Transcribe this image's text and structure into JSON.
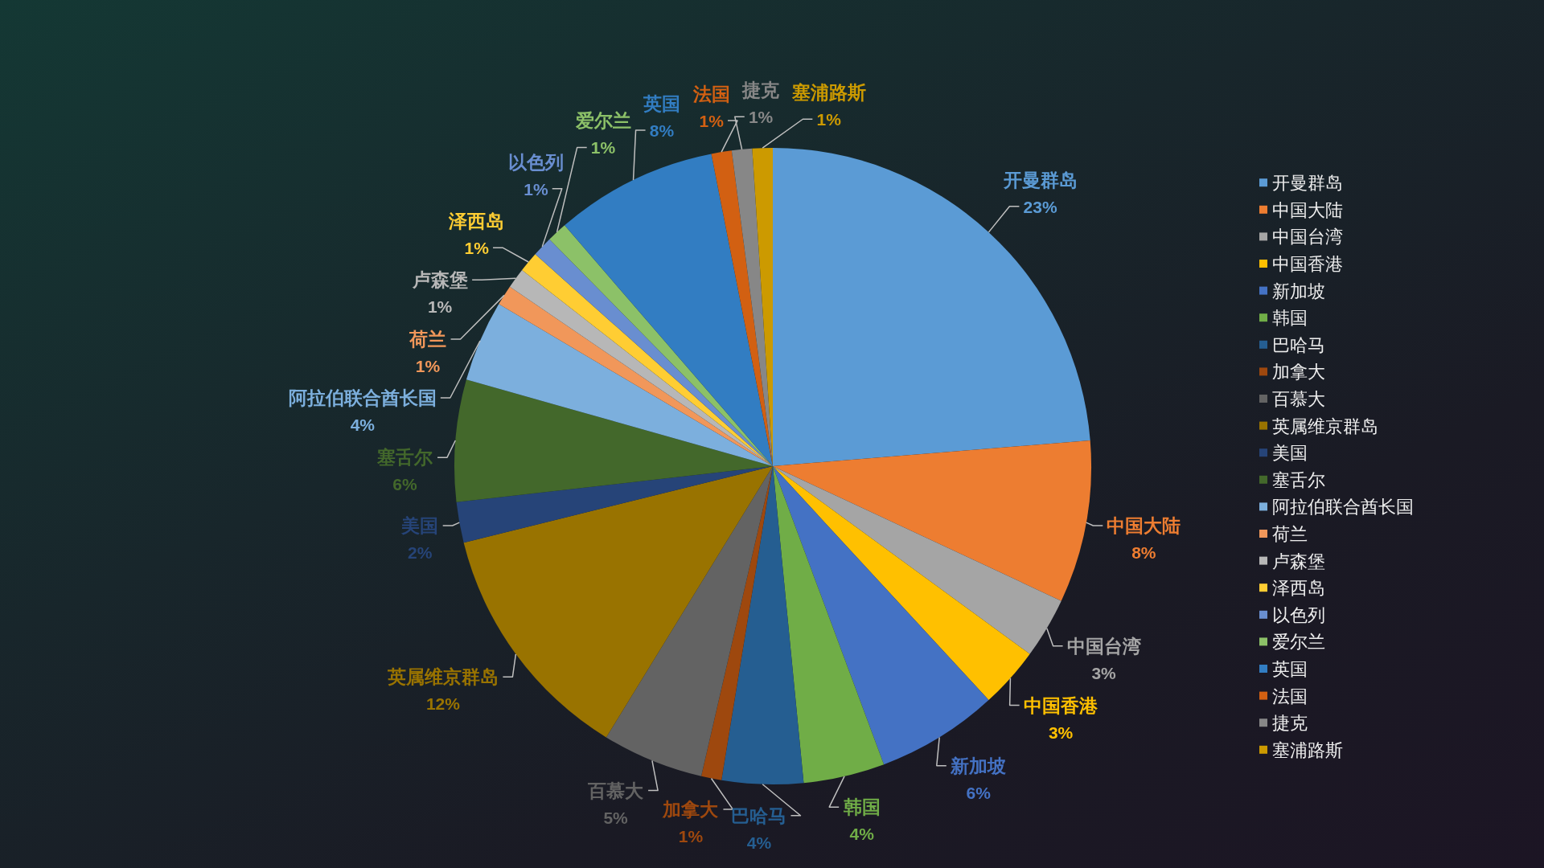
{
  "chart_data": {
    "type": "pie",
    "categories": [
      "开曼群岛",
      "中国大陆",
      "中国台湾",
      "中国香港",
      "新加坡",
      "韩国",
      "巴哈马",
      "加拿大",
      "百慕大",
      "英属维京群岛",
      "美国",
      "塞舌尔",
      "阿拉伯联合酋长国",
      "荷兰",
      "卢森堡",
      "泽西岛",
      "以色列",
      "爱尔兰",
      "英国",
      "法国",
      "捷克",
      "塞浦路斯"
    ],
    "values": [
      23,
      8,
      3,
      3,
      6,
      4,
      4,
      1,
      5,
      12,
      2,
      6,
      4,
      1,
      1,
      1,
      1,
      1,
      8,
      1,
      1,
      1
    ],
    "colors": [
      "#5b9bd5",
      "#ed7d31",
      "#a5a5a5",
      "#ffc000",
      "#4472c4",
      "#70ad47",
      "#255e91",
      "#9e480e",
      "#636363",
      "#997300",
      "#264478",
      "#43682b",
      "#7cafdd",
      "#f1975a",
      "#b7b7b7",
      "#ffcd33",
      "#698ed0",
      "#8cc168",
      "#327dc2",
      "#d26012",
      "#878787",
      "#cc9a00"
    ],
    "value_labels": [
      "23%",
      "8%",
      "3%",
      "3%",
      "6%",
      "4%",
      "4%",
      "1%",
      "5%",
      "12%",
      "2%",
      "6%",
      "4%",
      "1%",
      "1%",
      "1%",
      "1%",
      "1%",
      "8%",
      "1%",
      "1%",
      "1%"
    ],
    "legend": "right"
  }
}
